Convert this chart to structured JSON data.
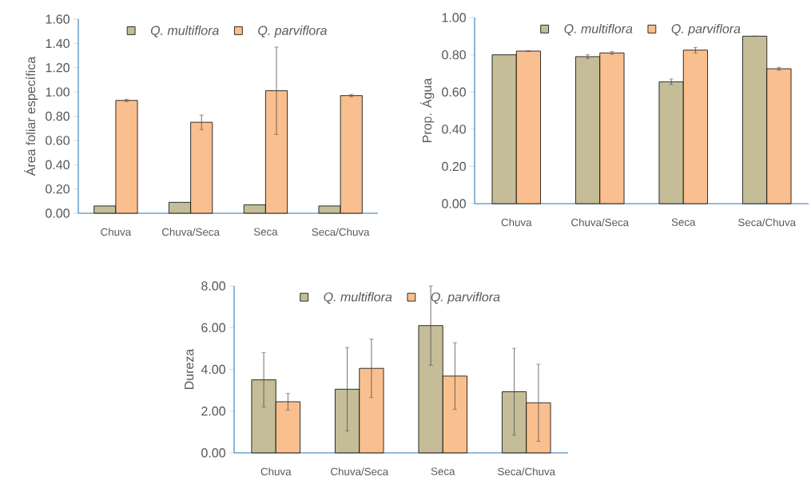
{
  "chart_data": [
    {
      "type": "bar",
      "ylabel": "Área foliar específica",
      "categories": [
        "Chuva",
        "Chuva/Seca",
        "Seca",
        "Seca/Chuva"
      ],
      "series": [
        {
          "name": "Q. multiflora",
          "color": "#c4bd97",
          "values": [
            0.06,
            0.09,
            0.07,
            0.06
          ]
        },
        {
          "name": "Q. parviflora",
          "color": "#f9bf8f",
          "values": [
            0.93,
            0.75,
            1.01,
            0.97
          ],
          "errors": [
            0.01,
            0.06,
            0.36,
            0.01
          ]
        }
      ],
      "ylim": [
        0,
        1.6
      ],
      "yticks": [
        {
          "value": 0,
          "label": "0.00"
        },
        {
          "value": 0.2,
          "label": "0.20"
        },
        {
          "value": 0.4,
          "label": "0.40"
        },
        {
          "value": 0.6,
          "label": "0.60"
        },
        {
          "value": 0.8,
          "label": "0.80"
        },
        {
          "value": 1,
          "label": "1.00"
        },
        {
          "value": 1.2,
          "label": "1.20"
        },
        {
          "value": 1.4,
          "label": "1.40"
        },
        {
          "value": 1.6,
          "label": "1.60"
        }
      ],
      "legend": "top"
    },
    {
      "type": "bar",
      "ylabel": "Prop. Água",
      "categories": [
        "Chuva",
        "Chuva/Seca",
        "Seca",
        "Seca/Chuva"
      ],
      "series": [
        {
          "name": "Q. multiflora",
          "color": "#c4bd97",
          "values": [
            0.8,
            0.79,
            0.655,
            0.9
          ],
          "errors": [
            null,
            0.01,
            0.015,
            null
          ]
        },
        {
          "name": "Q. parviflora",
          "color": "#f9bf8f",
          "values": [
            0.82,
            0.81,
            0.825,
            0.725
          ],
          "errors": [
            null,
            0.008,
            0.015,
            0.008
          ]
        }
      ],
      "ylim": [
        0,
        1
      ],
      "yticks": [
        {
          "value": 0,
          "label": "0.00"
        },
        {
          "value": 0.2,
          "label": "0.20"
        },
        {
          "value": 0.4,
          "label": "0.40"
        },
        {
          "value": 0.6,
          "label": "0.60"
        },
        {
          "value": 0.8,
          "label": "0.80"
        },
        {
          "value": 1,
          "label": "1.00"
        }
      ],
      "legend": "top"
    },
    {
      "type": "bar",
      "ylabel": "Dureza",
      "categories": [
        "Chuva",
        "Chuva/Seca",
        "Seca",
        "Seca/Chuva"
      ],
      "series": [
        {
          "name": "Q. multiflora",
          "color": "#c4bd97",
          "values": [
            3.5,
            3.05,
            6.1,
            2.93
          ],
          "errors": [
            1.3,
            2.0,
            1.9,
            2.08
          ]
        },
        {
          "name": "Q. parviflora",
          "color": "#f9bf8f",
          "values": [
            2.45,
            4.05,
            3.68,
            2.4
          ],
          "errors": [
            0.4,
            1.4,
            1.6,
            1.85
          ]
        }
      ],
      "ylim": [
        0,
        8
      ],
      "yticks": [
        {
          "value": 0,
          "label": "0.00"
        },
        {
          "value": 2,
          "label": "2.00"
        },
        {
          "value": 4,
          "label": "4.00"
        },
        {
          "value": 6,
          "label": "6.00"
        },
        {
          "value": 8,
          "label": "8.00"
        }
      ],
      "legend": "top"
    }
  ]
}
